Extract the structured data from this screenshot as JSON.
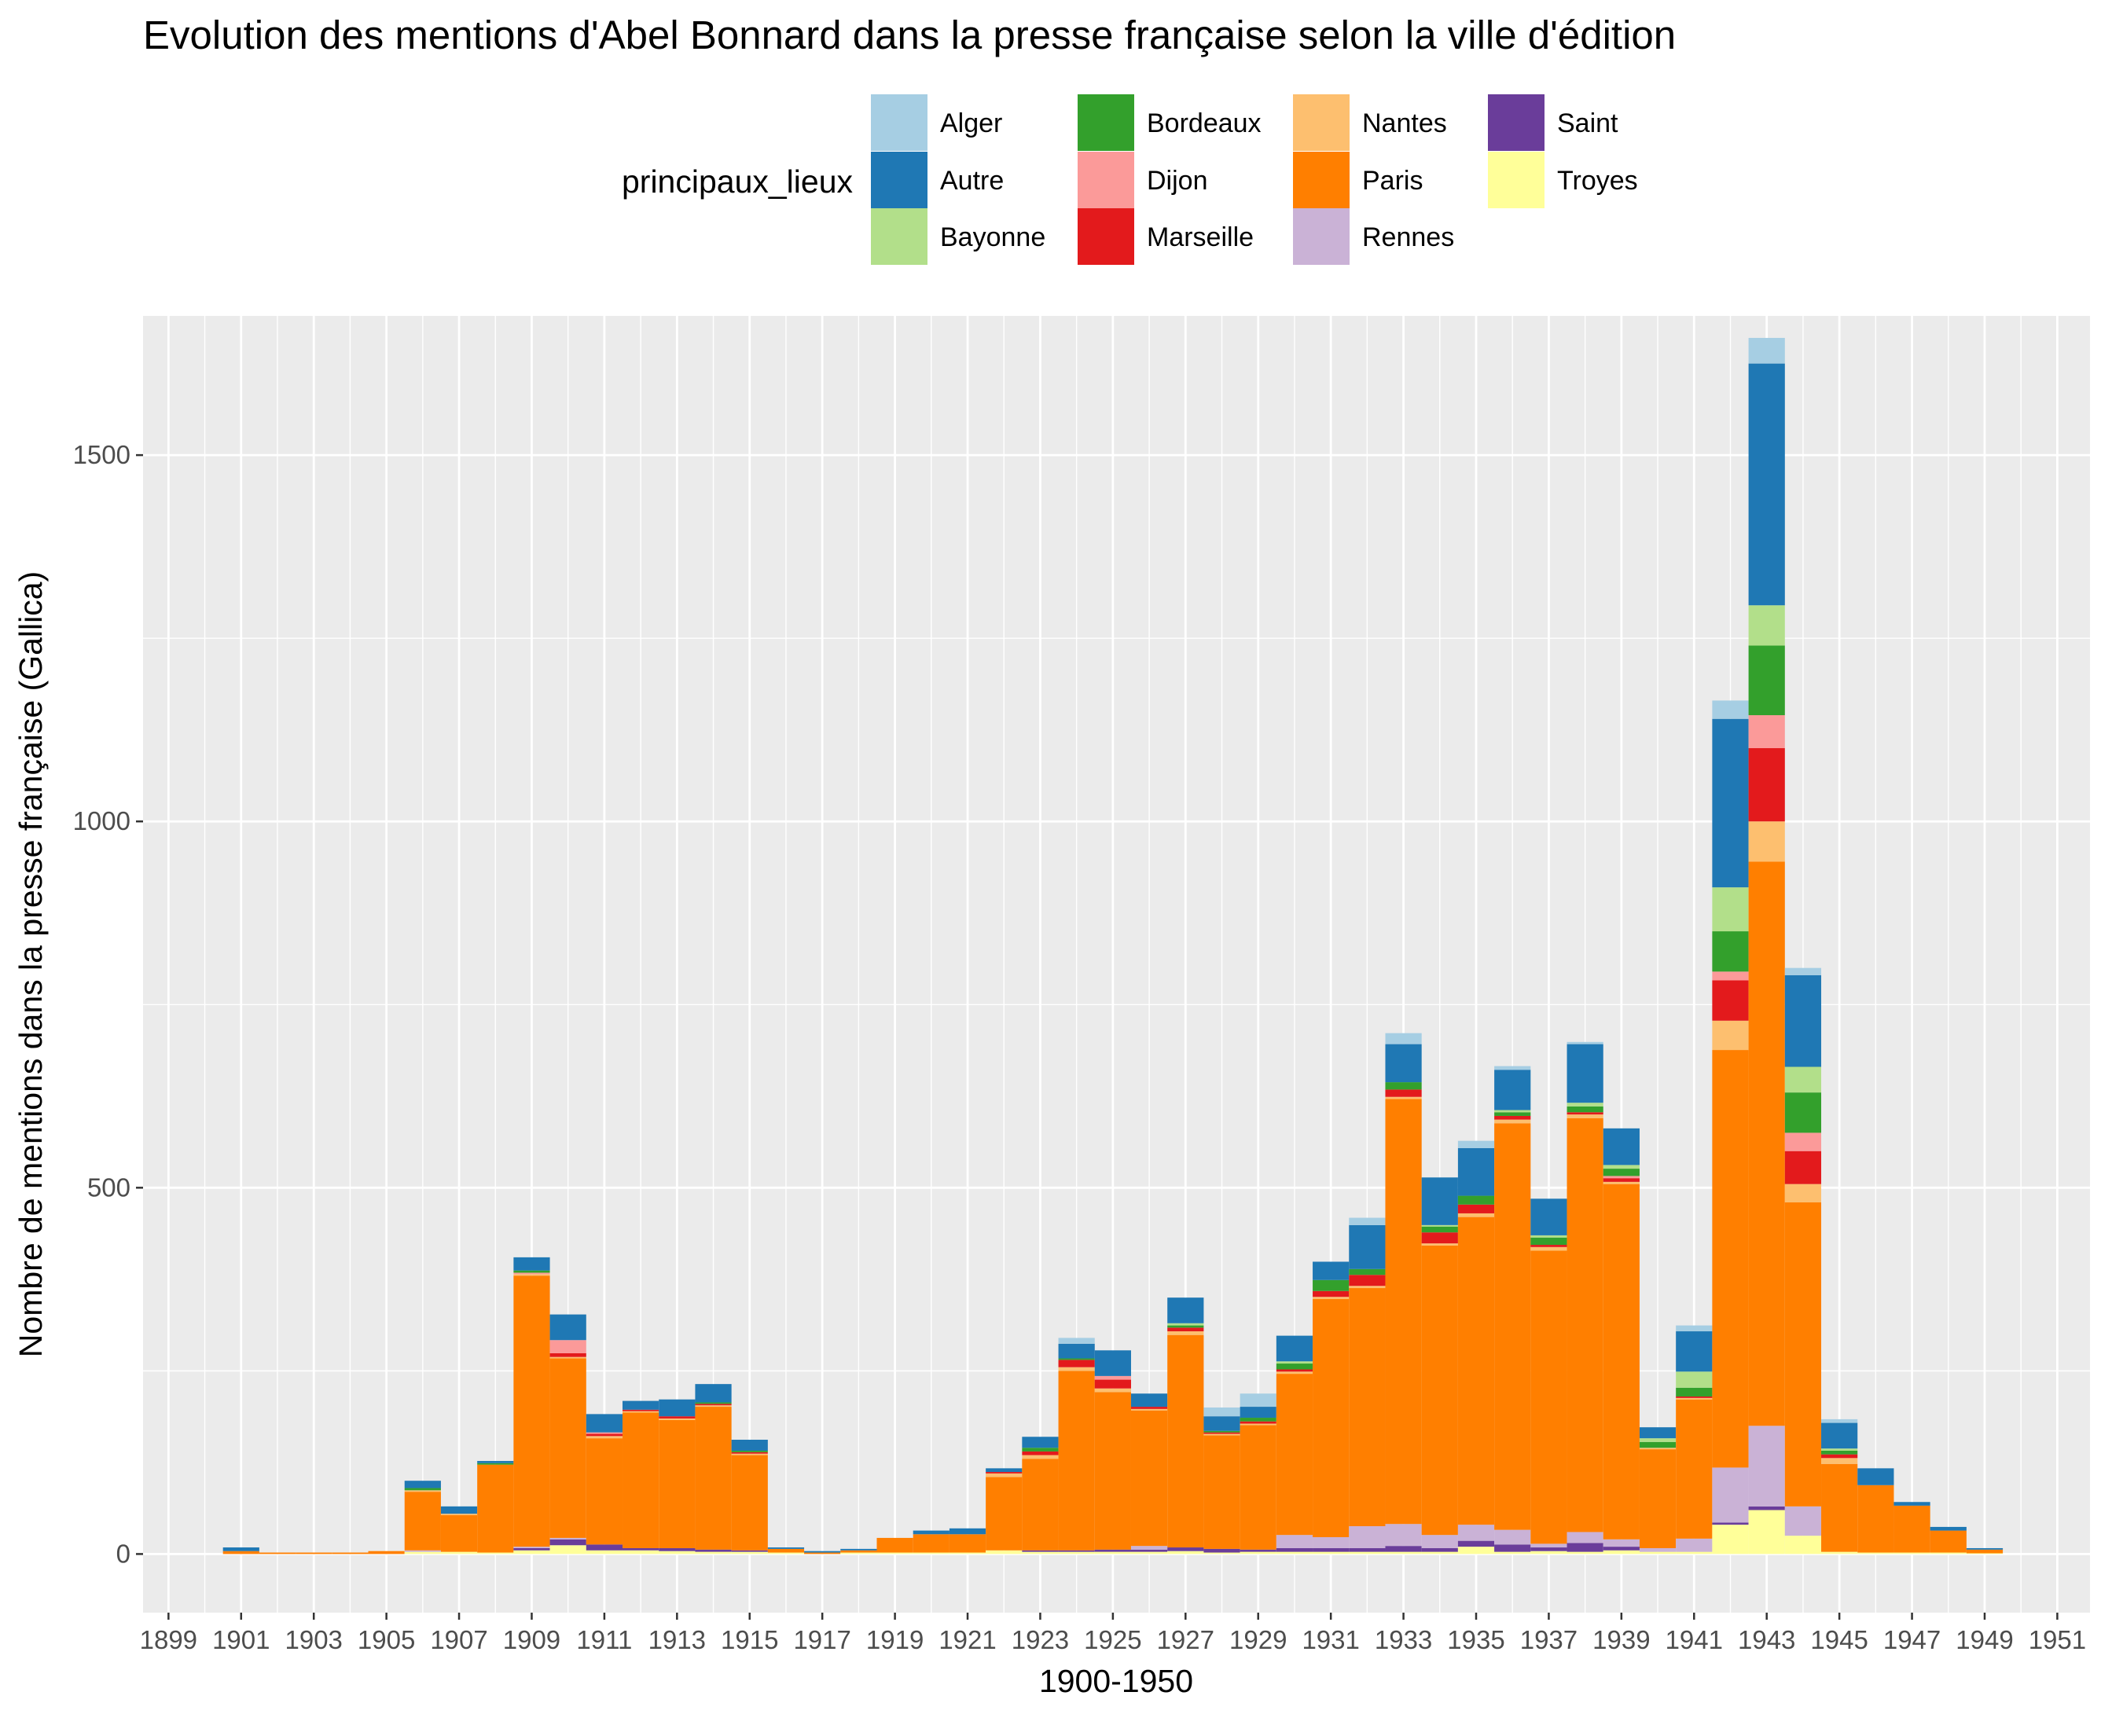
{
  "chart_data": {
    "type": "bar",
    "stacked": true,
    "title": "Evolution des mentions d'Abel Bonnard dans la presse française selon la ville d'édition",
    "xlabel": "1900-1950",
    "ylabel": "Nombre de mentions dans la presse française (Gallica)",
    "legend_title": "principaux_lieux",
    "legend_position": "top",
    "grid": true,
    "xlim": [
      1898.3,
      1951.9
    ],
    "ylim": [
      -80,
      1690
    ],
    "x_ticks": [
      1899,
      1901,
      1903,
      1905,
      1907,
      1909,
      1911,
      1913,
      1915,
      1917,
      1919,
      1921,
      1923,
      1925,
      1927,
      1929,
      1931,
      1933,
      1935,
      1937,
      1939,
      1941,
      1943,
      1945,
      1947,
      1949,
      1951
    ],
    "x_tick_labels": [
      "1899",
      "1901",
      "1903",
      "1905",
      "1907",
      "1909",
      "1911",
      "1913",
      "1915",
      "1917",
      "1919",
      "1921",
      "1923",
      "1925",
      "1927",
      "1929",
      "1931",
      "1933",
      "1935",
      "1937",
      "1939",
      "1941",
      "1943",
      "1945",
      "1947",
      "1949",
      "1951"
    ],
    "y_ticks": [
      0,
      500,
      1000,
      1500
    ],
    "y_tick_labels": [
      "0",
      "500",
      "1000",
      "1500"
    ],
    "categories": [
      1901,
      1902,
      1903,
      1904,
      1905,
      1906,
      1907,
      1908,
      1909,
      1910,
      1911,
      1912,
      1913,
      1914,
      1915,
      1916,
      1917,
      1918,
      1919,
      1920,
      1921,
      1922,
      1923,
      1924,
      1925,
      1926,
      1927,
      1928,
      1929,
      1930,
      1931,
      1932,
      1933,
      1934,
      1935,
      1936,
      1937,
      1938,
      1939,
      1940,
      1941,
      1942,
      1943,
      1944,
      1945,
      1946,
      1947,
      1948,
      1949,
      1950
    ],
    "series": [
      {
        "name": "Troyes",
        "color": "#FFFF99",
        "values": [
          0,
          0,
          0,
          0,
          0,
          3,
          3,
          2,
          5,
          12,
          5,
          5,
          4,
          3,
          3,
          2,
          0,
          2,
          2,
          2,
          2,
          5,
          3,
          3,
          3,
          3,
          4,
          2,
          3,
          3,
          3,
          3,
          3,
          3,
          10,
          3,
          4,
          3,
          5,
          3,
          3,
          40,
          60,
          25,
          3,
          2,
          2,
          2,
          1,
          0
        ]
      },
      {
        "name": "Saint",
        "color": "#6A3D9A",
        "values": [
          0,
          0,
          0,
          0,
          0,
          0,
          0,
          0,
          3,
          8,
          8,
          3,
          4,
          3,
          2,
          0,
          0,
          0,
          0,
          0,
          0,
          0,
          2,
          2,
          3,
          3,
          5,
          5,
          3,
          5,
          5,
          5,
          8,
          5,
          8,
          10,
          5,
          12,
          5,
          0,
          0,
          3,
          5,
          0,
          0,
          0,
          0,
          0,
          0,
          0
        ]
      },
      {
        "name": "Rennes",
        "color": "#CAB2D6",
        "values": [
          0,
          0,
          0,
          0,
          0,
          2,
          0,
          0,
          2,
          2,
          0,
          0,
          0,
          0,
          0,
          0,
          0,
          0,
          0,
          0,
          0,
          0,
          0,
          0,
          0,
          5,
          0,
          0,
          0,
          18,
          15,
          30,
          30,
          18,
          22,
          20,
          5,
          15,
          10,
          5,
          18,
          75,
          110,
          40,
          0,
          0,
          0,
          0,
          0,
          0
        ]
      },
      {
        "name": "Paris",
        "color": "#FF7F00",
        "values": [
          4,
          2,
          2,
          2,
          4,
          80,
          50,
          120,
          370,
          245,
          145,
          185,
          175,
          195,
          130,
          5,
          2,
          3,
          20,
          25,
          25,
          100,
          125,
          245,
          215,
          185,
          290,
          155,
          170,
          220,
          325,
          325,
          580,
          395,
          420,
          555,
          400,
          565,
          485,
          135,
          190,
          570,
          770,
          415,
          120,
          92,
          64,
          30,
          5,
          0
        ]
      },
      {
        "name": "Nantes",
        "color": "#FDBF6F",
        "values": [
          0,
          0,
          0,
          0,
          0,
          2,
          2,
          0,
          2,
          2,
          3,
          2,
          2,
          2,
          2,
          0,
          0,
          0,
          0,
          0,
          0,
          5,
          5,
          5,
          5,
          2,
          5,
          2,
          2,
          3,
          3,
          3,
          3,
          3,
          5,
          5,
          5,
          5,
          3,
          2,
          2,
          40,
          55,
          25,
          8,
          0,
          0,
          0,
          0,
          0
        ]
      },
      {
        "name": "Marseille",
        "color": "#E31A1C",
        "values": [
          0,
          0,
          0,
          0,
          0,
          0,
          0,
          0,
          0,
          5,
          3,
          2,
          3,
          2,
          2,
          0,
          0,
          0,
          0,
          0,
          0,
          2,
          5,
          10,
          12,
          3,
          5,
          2,
          3,
          3,
          8,
          15,
          10,
          15,
          12,
          5,
          3,
          3,
          5,
          0,
          2,
          55,
          100,
          45,
          5,
          0,
          0,
          0,
          0,
          0
        ]
      },
      {
        "name": "Dijon",
        "color": "#FB9A99",
        "values": [
          0,
          0,
          0,
          0,
          0,
          0,
          0,
          0,
          2,
          18,
          2,
          0,
          0,
          0,
          0,
          0,
          0,
          0,
          0,
          0,
          0,
          0,
          0,
          0,
          5,
          0,
          0,
          0,
          0,
          0,
          0,
          0,
          0,
          0,
          0,
          0,
          0,
          0,
          3,
          0,
          0,
          12,
          45,
          25,
          0,
          0,
          0,
          0,
          0,
          0
        ]
      },
      {
        "name": "Bordeaux",
        "color": "#33A02C",
        "values": [
          0,
          0,
          0,
          0,
          0,
          3,
          0,
          2,
          3,
          0,
          0,
          0,
          0,
          2,
          2,
          0,
          0,
          0,
          0,
          0,
          0,
          0,
          5,
          2,
          0,
          0,
          3,
          2,
          5,
          8,
          15,
          8,
          10,
          8,
          12,
          5,
          10,
          8,
          10,
          8,
          12,
          55,
          95,
          55,
          5,
          0,
          0,
          0,
          0,
          0
        ]
      },
      {
        "name": "Bayonne",
        "color": "#B2DF8A",
        "values": [
          0,
          0,
          0,
          0,
          0,
          0,
          0,
          0,
          0,
          0,
          0,
          0,
          0,
          0,
          0,
          0,
          0,
          0,
          0,
          0,
          0,
          0,
          0,
          0,
          0,
          0,
          3,
          0,
          0,
          3,
          0,
          0,
          0,
          2,
          0,
          3,
          3,
          5,
          5,
          5,
          22,
          60,
          55,
          35,
          3,
          0,
          0,
          0,
          0,
          0
        ]
      },
      {
        "name": "Autre",
        "color": "#1F78B4",
        "values": [
          5,
          0,
          0,
          0,
          0,
          10,
          10,
          3,
          18,
          35,
          25,
          12,
          23,
          25,
          15,
          2,
          2,
          2,
          0,
          5,
          8,
          5,
          15,
          20,
          35,
          18,
          35,
          20,
          15,
          35,
          25,
          60,
          52,
          65,
          65,
          55,
          50,
          80,
          50,
          15,
          55,
          230,
          330,
          125,
          35,
          23,
          5,
          5,
          2,
          0
        ]
      },
      {
        "name": "Alger",
        "color": "#A6CEE3",
        "values": [
          0,
          0,
          0,
          0,
          0,
          0,
          0,
          0,
          0,
          0,
          0,
          0,
          0,
          0,
          0,
          0,
          0,
          0,
          0,
          0,
          0,
          0,
          0,
          8,
          0,
          0,
          0,
          12,
          18,
          0,
          0,
          10,
          15,
          0,
          10,
          5,
          0,
          3,
          0,
          0,
          8,
          25,
          35,
          10,
          5,
          0,
          0,
          0,
          0,
          0
        ]
      }
    ]
  },
  "legend": {
    "title": "principaux_lieux",
    "items": [
      {
        "label": "Alger",
        "color": "#A6CEE3"
      },
      {
        "label": "Autre",
        "color": "#1F78B4"
      },
      {
        "label": "Bayonne",
        "color": "#B2DF8A"
      },
      {
        "label": "Bordeaux",
        "color": "#33A02C"
      },
      {
        "label": "Dijon",
        "color": "#FB9A99"
      },
      {
        "label": "Marseille",
        "color": "#E31A1C"
      },
      {
        "label": "Nantes",
        "color": "#FDBF6F"
      },
      {
        "label": "Paris",
        "color": "#FF7F00"
      },
      {
        "label": "Rennes",
        "color": "#CAB2D6"
      },
      {
        "label": "Saint",
        "color": "#6A3D9A"
      },
      {
        "label": "Troyes",
        "color": "#FFFF99"
      }
    ]
  },
  "colors": {
    "panel_background": "#EBEBEB",
    "grid_major": "#FFFFFF",
    "tick_text": "#4D4D4D"
  }
}
